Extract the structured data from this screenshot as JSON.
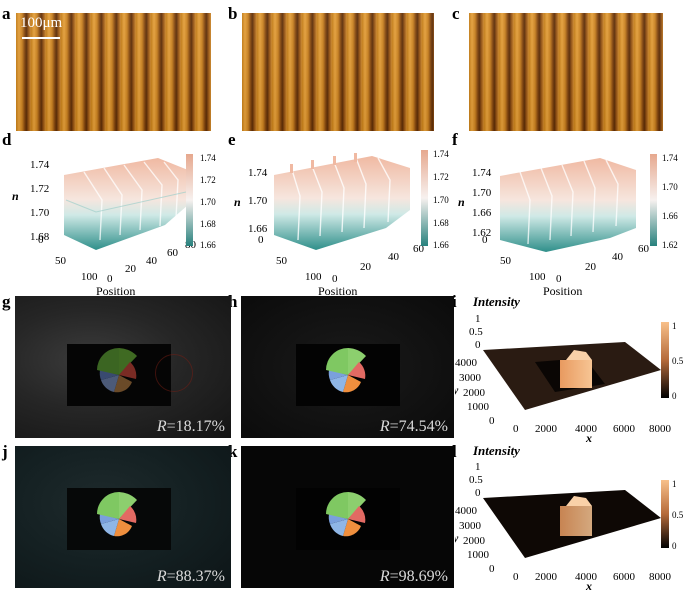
{
  "panels": {
    "a": "a",
    "b": "b",
    "c": "c",
    "d": "d",
    "e": "e",
    "f": "f",
    "g": "g",
    "h": "h",
    "i": "i",
    "j": "j",
    "k": "k",
    "l": "l"
  },
  "scale_bar": "100μm",
  "surface_plots": {
    "n_label": "n",
    "x_label": "Position",
    "d": {
      "yticks": [
        "1.74",
        "1.72",
        "1.70",
        "1.68"
      ],
      "depth_ticks": [
        "0",
        "50",
        "100"
      ],
      "xticks": [
        "0",
        "20",
        "40",
        "60",
        "80"
      ],
      "cbar": [
        "1.74",
        "1.72",
        "1.70",
        "1.68",
        "1.66"
      ]
    },
    "e": {
      "yticks": [
        "1.74",
        "1.70",
        "1.66"
      ],
      "depth_ticks": [
        "0",
        "50",
        "100"
      ],
      "xticks": [
        "0",
        "20",
        "40",
        "60"
      ],
      "cbar": [
        "1.74",
        "1.72",
        "1.70",
        "1.68",
        "1.66"
      ]
    },
    "f": {
      "yticks": [
        "1.74",
        "1.70",
        "1.66",
        "1.62"
      ],
      "depth_ticks": [
        "0",
        "50",
        "100"
      ],
      "xticks": [
        "0",
        "20",
        "40",
        "60"
      ],
      "cbar": [
        "1.74",
        "1.70",
        "1.66",
        "1.62"
      ]
    }
  },
  "reflectance": {
    "prefix": "R",
    "g": "=18.17%",
    "h": "=74.54%",
    "j": "=88.37%",
    "k": "=98.69%"
  },
  "intensity_plots": {
    "title": "Intensity",
    "x_label": "x",
    "y_label": "y",
    "z_ticks": [
      "1",
      "0.5",
      "0"
    ],
    "y_ticks": [
      "4000",
      "3000",
      "2000",
      "1000",
      "0"
    ],
    "x_ticks": [
      "0",
      "2000",
      "4000",
      "6000",
      "8000"
    ],
    "cbar": [
      "1",
      "0.5",
      "0"
    ]
  },
  "colors": {
    "surface_top": "#f2c7b4",
    "surface_bottom": "#2f8f8a",
    "cbar_top": "#e6a88e",
    "cbar_bottom": "#27807c",
    "intensity_high": "#f4b57a"
  }
}
